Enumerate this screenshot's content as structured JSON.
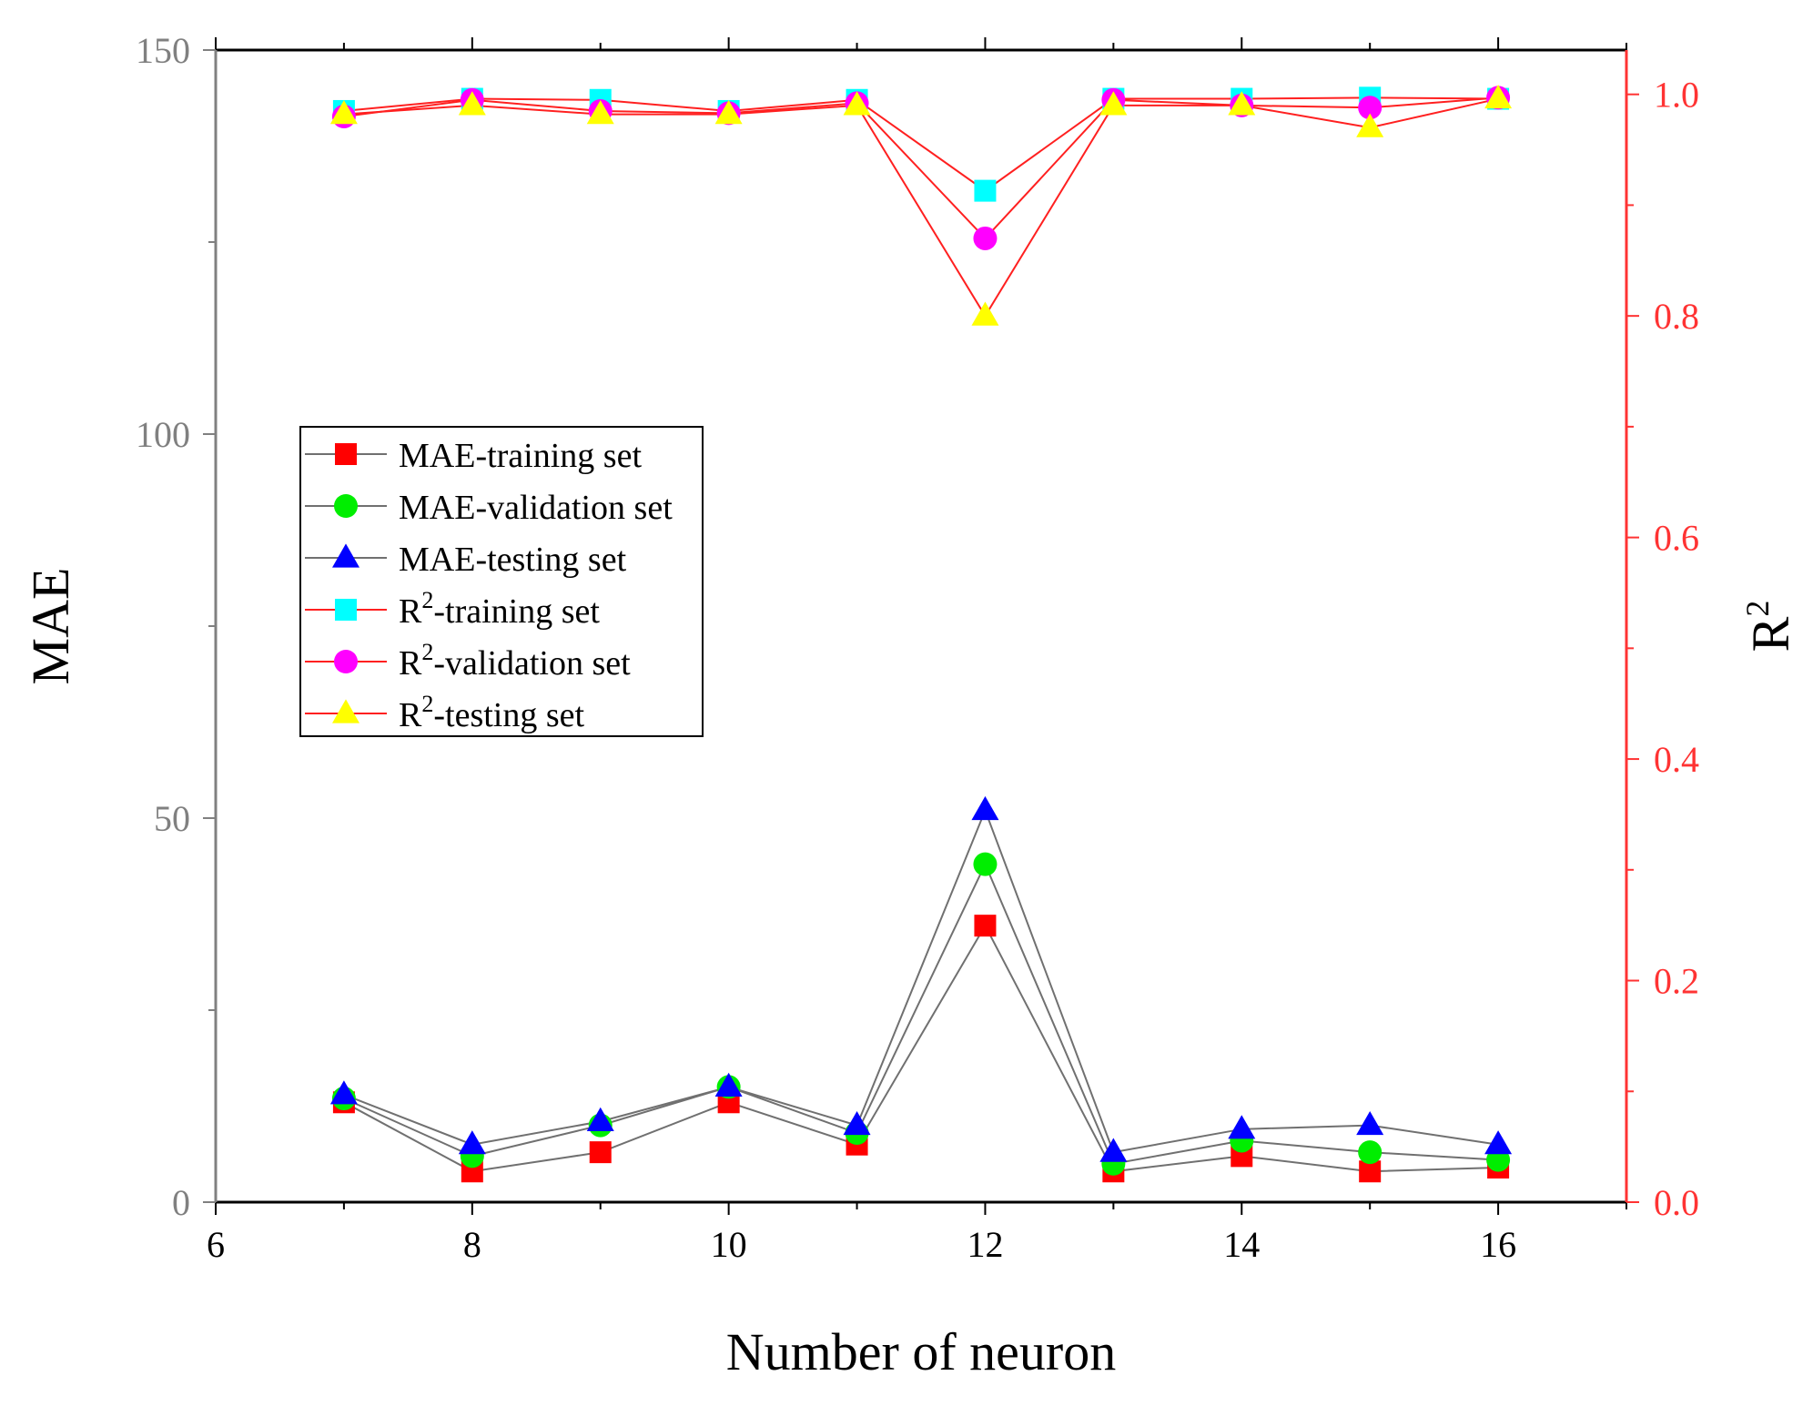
{
  "chart_data": {
    "type": "line",
    "xlabel": "Number of neuron",
    "ylabel_left": "MAE",
    "ylabel_right_base": "R",
    "ylabel_right_sup": "2",
    "xlim": [
      6,
      17
    ],
    "ylim_left": [
      0,
      150
    ],
    "ylim_right": [
      0.0,
      1.04
    ],
    "x_ticks": [
      "6",
      "8",
      "10",
      "12",
      "14",
      "16"
    ],
    "y_left_ticks": [
      "0",
      "50",
      "100",
      "150"
    ],
    "y_right_ticks": [
      "0.0",
      "0.2",
      "0.4",
      "0.6",
      "0.8",
      "1.0"
    ],
    "x": [
      7,
      8,
      9,
      10,
      11,
      12,
      13,
      14,
      15,
      16
    ],
    "colors": {
      "left_axis": "#808080",
      "right_axis": "#ff3333",
      "mae_line": "#707070",
      "r2_line": "#ff2020"
    },
    "series": [
      {
        "name": "MAE-training set",
        "axis": "left",
        "marker": "square",
        "color": "#ff0000",
        "values": [
          13,
          4,
          6.5,
          13,
          7.5,
          36,
          4,
          6,
          4,
          4.5
        ]
      },
      {
        "name": "MAE-validation set",
        "axis": "left",
        "marker": "circle",
        "color": "#00ee00",
        "values": [
          13.5,
          6,
          10,
          15,
          9,
          44,
          5,
          8,
          6.5,
          5.5
        ]
      },
      {
        "name": "MAE-testing set",
        "axis": "left",
        "marker": "triangle",
        "color": "#0000ff",
        "values": [
          14,
          7.5,
          10.5,
          15,
          10,
          51,
          6.5,
          9.5,
          10,
          7.5
        ]
      },
      {
        "name": "R²-training set",
        "axis": "right",
        "marker": "square",
        "color": "#00ffff",
        "values": [
          0.985,
          0.996,
          0.995,
          0.985,
          0.995,
          0.913,
          0.996,
          0.996,
          0.997,
          0.996
        ]
      },
      {
        "name": "R²-validation set",
        "axis": "right",
        "marker": "circle",
        "color": "#ff00ff",
        "values": [
          0.98,
          0.995,
          0.985,
          0.983,
          0.992,
          0.87,
          0.995,
          0.99,
          0.988,
          0.997
        ]
      },
      {
        "name": "R²-testing set",
        "axis": "right",
        "marker": "triangle",
        "color": "#ffff00",
        "values": [
          0.982,
          0.99,
          0.982,
          0.982,
          0.99,
          0.8,
          0.99,
          0.99,
          0.97,
          0.996
        ]
      }
    ],
    "legend": {
      "position": "center-left",
      "entries": [
        {
          "prefix": "MAE-training set",
          "sup": "",
          "suffix": ""
        },
        {
          "prefix": "MAE-validation set",
          "sup": "",
          "suffix": ""
        },
        {
          "prefix": "MAE-testing set",
          "sup": "",
          "suffix": ""
        },
        {
          "prefix": "R",
          "sup": "2",
          "suffix": "-training set"
        },
        {
          "prefix": "R",
          "sup": "2",
          "suffix": "-validation set"
        },
        {
          "prefix": "R",
          "sup": "2",
          "suffix": "-testing set"
        }
      ]
    }
  }
}
